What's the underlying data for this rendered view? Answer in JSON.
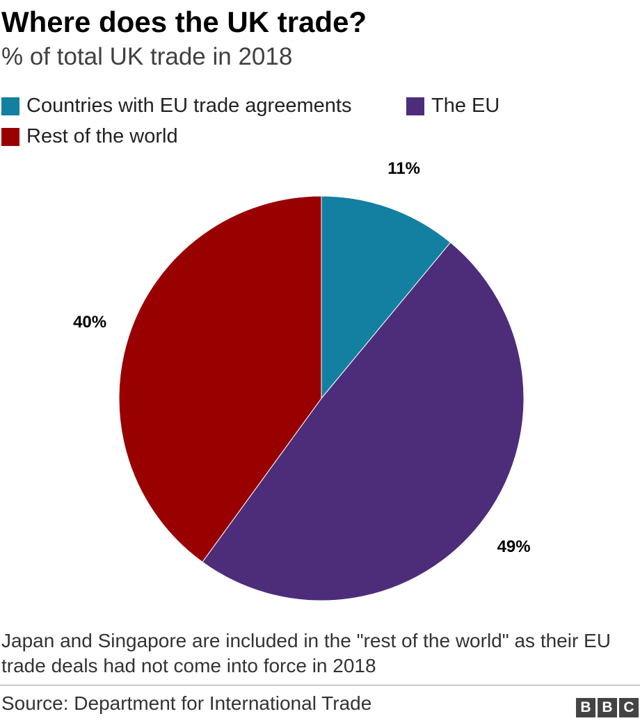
{
  "title": "Where does the UK trade?",
  "subtitle": "% of total UK trade in 2018",
  "legend": [
    {
      "label": "Countries with EU trade agreements",
      "color": "#1380a1"
    },
    {
      "label": "The EU",
      "color": "#4d2d7a"
    },
    {
      "label": "Rest of the world",
      "color": "#990000"
    }
  ],
  "chart_data": {
    "type": "pie",
    "title": "Where does the UK trade?",
    "subtitle": "% of total UK trade in 2018",
    "legend_placement": "top-left",
    "slices": [
      {
        "name": "Countries with EU trade agreements",
        "value": 11,
        "label": "11%",
        "color": "#1380a1"
      },
      {
        "name": "The EU",
        "value": 49,
        "label": "49%",
        "color": "#4d2d7a"
      },
      {
        "name": "Rest of the world",
        "value": 40,
        "label": "40%",
        "color": "#990000"
      }
    ]
  },
  "note": "Japan and Singapore are included in the \"rest of the world\" as their EU trade deals had not come into force in 2018",
  "source": "Source: Department for International Trade",
  "logo": [
    "B",
    "B",
    "C"
  ]
}
